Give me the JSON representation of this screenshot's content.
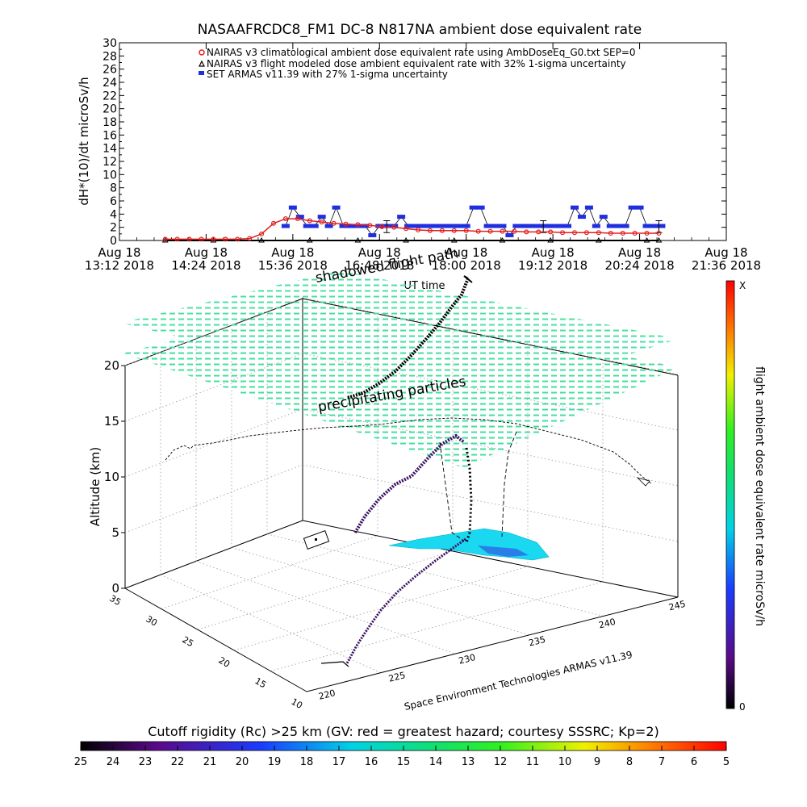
{
  "chart_data": [
    {
      "type": "line",
      "title": "NASAAFRCDC8_FM1 DC-8   N817NA ambient dose equivalent rate",
      "ylabel": "dH*(10)/dt microSv/h",
      "xlabel": "UT time",
      "ylim": [
        0,
        30
      ],
      "yticks": [
        "0",
        "2",
        "4",
        "6",
        "8",
        "10",
        "12",
        "14",
        "16",
        "18",
        "20",
        "22",
        "24",
        "26",
        "28",
        "30"
      ],
      "xticks": [
        {
          "date": "Aug 18",
          "time": "13:12 2018"
        },
        {
          "date": "Aug 18",
          "time": "14:24 2018"
        },
        {
          "date": "Aug 18",
          "time": "15:36 2018"
        },
        {
          "date": "Aug 18",
          "time": "16:48 2018"
        },
        {
          "date": "Aug 18",
          "time": "18:00 2018"
        },
        {
          "date": "Aug 18",
          "time": "19:12 2018"
        },
        {
          "date": "Aug 18",
          "time": "20:24 2018"
        },
        {
          "date": "Aug 18",
          "time": "21:36 2018"
        }
      ],
      "legend": [
        "NAIRAS v3 climatological ambient dose equivalent rate using AmbDoseEq_G0.txt SEP=0",
        "NAIRAS v3 flight modeled dose ambient equivalent rate with 32% 1-sigma uncertainty",
        "SET ARMAS v11.39 with 27% 1-sigma uncertainty"
      ],
      "legend_position": "top-center",
      "series": [
        {
          "name": "NAIRAS v3 climatological ambient dose equivalent rate using AmbDoseEq_G0.txt SEP=0",
          "color": "#e02020",
          "x": [
            "13:50",
            "14:00",
            "14:10",
            "14:20",
            "14:30",
            "14:40",
            "14:50",
            "15:00",
            "15:10",
            "15:20",
            "15:30",
            "15:40",
            "15:50",
            "16:00",
            "16:10",
            "16:20",
            "16:30",
            "16:40",
            "16:50",
            "17:00",
            "17:10",
            "17:20",
            "17:30",
            "17:40",
            "17:50",
            "18:00",
            "18:10",
            "18:20",
            "18:30",
            "18:40",
            "18:50",
            "19:00",
            "19:10",
            "19:20",
            "19:30",
            "19:40",
            "19:50",
            "20:00",
            "20:10",
            "20:20",
            "20:30",
            "20:40"
          ],
          "y": [
            0.2,
            0.2,
            0.2,
            0.2,
            0.2,
            0.2,
            0.2,
            0.3,
            1.0,
            2.6,
            3.3,
            3.3,
            3.0,
            2.8,
            2.6,
            2.5,
            2.4,
            2.3,
            2.1,
            2.0,
            1.8,
            1.6,
            1.5,
            1.5,
            1.5,
            1.5,
            1.4,
            1.4,
            1.4,
            1.4,
            1.3,
            1.3,
            1.3,
            1.2,
            1.2,
            1.2,
            1.2,
            1.1,
            1.1,
            1.1,
            1.1,
            1.1
          ]
        },
        {
          "name": "NAIRAS v3 flight modeled dose ambient equivalent rate with 32% 1-sigma uncertainty",
          "color": "#000000",
          "x": [
            "13:50",
            "14:30",
            "15:10",
            "15:50",
            "16:30",
            "17:10",
            "17:50",
            "18:30",
            "19:10",
            "19:50",
            "20:30",
            "20:40"
          ],
          "y": [
            0,
            0,
            0,
            0,
            0,
            0,
            0,
            0,
            0,
            0,
            0,
            0
          ]
        },
        {
          "name": "SET ARMAS v11.39 with 27% 1-sigma uncertainty",
          "color": "#1f2fe0",
          "x": [
            "15:30",
            "15:36",
            "15:42",
            "15:48",
            "15:54",
            "16:00",
            "16:06",
            "16:12",
            "16:18",
            "16:24",
            "16:30",
            "16:36",
            "16:42",
            "16:48",
            "16:54",
            "17:00",
            "17:06",
            "17:12",
            "17:18",
            "17:24",
            "17:30",
            "17:36",
            "17:42",
            "17:48",
            "17:54",
            "18:00",
            "18:06",
            "18:12",
            "18:18",
            "18:24",
            "18:30",
            "18:36",
            "18:42",
            "18:48",
            "18:54",
            "19:00",
            "19:06",
            "19:12",
            "19:18",
            "19:24",
            "19:30",
            "19:36",
            "19:42",
            "19:48",
            "19:54",
            "20:00",
            "20:06",
            "20:12",
            "20:18",
            "20:24",
            "20:30",
            "20:36",
            "20:42"
          ],
          "y": [
            2.2,
            5.0,
            3.6,
            2.2,
            2.2,
            3.6,
            2.2,
            5.0,
            2.2,
            2.2,
            2.2,
            2.2,
            0.8,
            2.2,
            2.2,
            2.2,
            3.6,
            2.2,
            2.2,
            2.2,
            2.2,
            2.2,
            2.2,
            2.2,
            2.2,
            2.2,
            5.0,
            5.0,
            2.2,
            2.2,
            2.2,
            0.8,
            2.2,
            2.2,
            2.2,
            2.2,
            2.2,
            2.2,
            2.2,
            2.2,
            5.0,
            3.6,
            5.0,
            2.2,
            3.6,
            2.2,
            2.2,
            2.2,
            5.0,
            5.0,
            2.2,
            2.2,
            2.2
          ]
        }
      ]
    },
    {
      "type": "scatter",
      "subtype": "3d-trajectory",
      "zlabel": "Altitude (km)",
      "zticks": [
        "0",
        "5",
        "10",
        "15",
        "20"
      ],
      "yticks": [
        "10",
        "15",
        "20",
        "25",
        "30",
        "35"
      ],
      "xticks": [
        "220",
        "225",
        "230",
        "235",
        "240",
        "245"
      ],
      "credit": "Space Environment Technologies ARMAS v11.39",
      "annotations": [
        "shadowed flight path",
        "precipitating particles"
      ],
      "surfaces": [
        "cutoff rigidity grid at ~20 km",
        "surface rigidity map"
      ],
      "track_lon": [
        221,
        223,
        225,
        227,
        229,
        231,
        233,
        235,
        236,
        237,
        238,
        239,
        240
      ],
      "track_lat": [
        11,
        13,
        15,
        17,
        19,
        21,
        23,
        25,
        27,
        29,
        31,
        33,
        35
      ],
      "track_alt_km": [
        0.5,
        2,
        6,
        10,
        11,
        11.5,
        12,
        14,
        15,
        16,
        17,
        18,
        19
      ]
    }
  ],
  "colorbar_right": {
    "label": "flight ambient dose equivalent rate microSv/h",
    "top": "X",
    "bottom": "0"
  },
  "colorbar_bottom": {
    "label": "Cutoff rigidity (Rc) >25 km (GV: red = greatest hazard; courtesy SSSRC; Kp=2)",
    "ticks": [
      "25",
      "24",
      "23",
      "22",
      "21",
      "20",
      "19",
      "18",
      "17",
      "16",
      "15",
      "14",
      "13",
      "12",
      "11",
      "10",
      "9",
      "8",
      "7",
      "6",
      "5"
    ]
  }
}
